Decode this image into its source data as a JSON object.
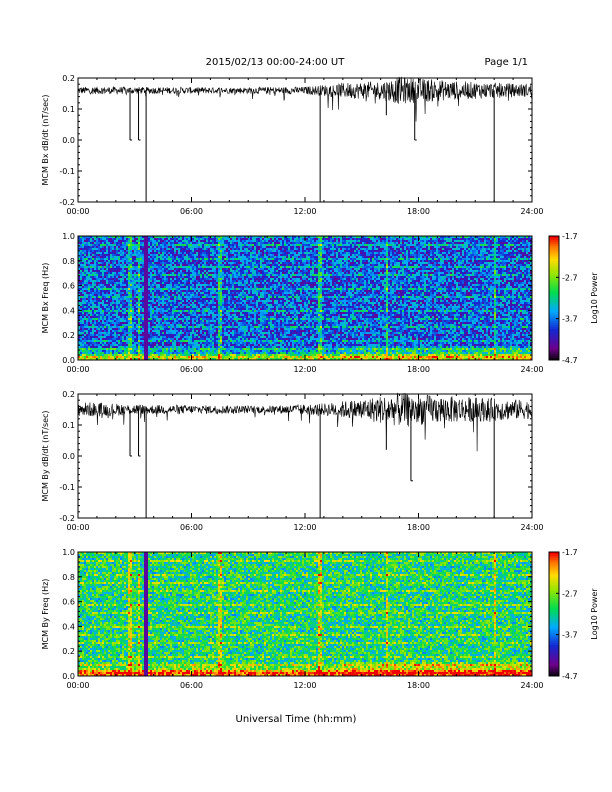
{
  "header": {
    "title": "2015/02/13  00:00-24:00 UT",
    "page": "Page 1/1"
  },
  "x_axis_title": "Universal Time (hh:mm)",
  "chart_data": [
    {
      "type": "line",
      "id": "bx_line",
      "ylabel": "MCM Bx dB/dt (nT/sec)",
      "ylim": [
        -0.2,
        0.2
      ],
      "xlim_hours": [
        0,
        24
      ],
      "yticks": [
        "0.2",
        "0.1",
        "0.0",
        "-0.1",
        "-0.2"
      ],
      "ytick_values": [
        0.2,
        0.1,
        0.0,
        -0.1,
        -0.2
      ],
      "xticks": [
        "00:00",
        "06:00",
        "12:00",
        "18:00",
        "24:00"
      ],
      "baseline": 0.16,
      "noise_envelope": [
        {
          "x": 0,
          "amp": 0.012
        },
        {
          "x": 8,
          "amp": 0.01
        },
        {
          "x": 12,
          "amp": 0.012
        },
        {
          "x": 14,
          "amp": 0.025
        },
        {
          "x": 16,
          "amp": 0.03
        },
        {
          "x": 17,
          "amp": 0.045
        },
        {
          "x": 18,
          "amp": 0.04
        },
        {
          "x": 20,
          "amp": 0.03
        },
        {
          "x": 22,
          "amp": 0.025
        },
        {
          "x": 24,
          "amp": 0.02
        }
      ],
      "spikes": [
        {
          "x": 2.75,
          "y": 0.0
        },
        {
          "x": 3.2,
          "y": 0.0
        },
        {
          "x": 3.6,
          "y": -0.2
        },
        {
          "x": 12.8,
          "y": -0.2
        },
        {
          "x": 16.3,
          "y": 0.08
        },
        {
          "x": 17.8,
          "y": 0.0
        },
        {
          "x": 22.0,
          "y": -0.2
        }
      ]
    },
    {
      "type": "heatmap",
      "id": "bx_spec",
      "ylabel": "MCM Bx Freq (Hz)",
      "ylim": [
        0.0,
        1.0
      ],
      "xlim_hours": [
        0,
        24
      ],
      "yticks": [
        "1.0",
        "0.8",
        "0.6",
        "0.4",
        "0.2",
        "0.0"
      ],
      "ytick_values": [
        1.0,
        0.8,
        0.6,
        0.4,
        0.2,
        0.0
      ],
      "xticks": [
        "00:00",
        "06:00",
        "12:00",
        "18:00",
        "24:00"
      ],
      "base_level": -3.8,
      "colorbar": {
        "label": "Log10 Power",
        "min": -4.7,
        "max": -1.7,
        "ticks": [
          "-1.7",
          "-2.7",
          "-3.7",
          "-4.7"
        ],
        "tick_values": [
          -1.7,
          -2.7,
          -3.7,
          -4.7
        ]
      }
    },
    {
      "type": "line",
      "id": "by_line",
      "ylabel": "MCM By dB/dt (nT/sec)",
      "ylim": [
        -0.2,
        0.2
      ],
      "xlim_hours": [
        0,
        24
      ],
      "yticks": [
        "0.2",
        "0.1",
        "0.0",
        "-0.1",
        "-0.2"
      ],
      "ytick_values": [
        0.2,
        0.1,
        0.0,
        -0.1,
        -0.2
      ],
      "xticks": [
        "00:00",
        "06:00",
        "12:00",
        "18:00",
        "24:00"
      ],
      "baseline": 0.15,
      "noise_envelope": [
        {
          "x": 0,
          "amp": 0.025
        },
        {
          "x": 4,
          "amp": 0.015
        },
        {
          "x": 10,
          "amp": 0.012
        },
        {
          "x": 13,
          "amp": 0.02
        },
        {
          "x": 15,
          "amp": 0.035
        },
        {
          "x": 17,
          "amp": 0.055
        },
        {
          "x": 19,
          "amp": 0.045
        },
        {
          "x": 21,
          "amp": 0.04
        },
        {
          "x": 24,
          "amp": 0.03
        }
      ],
      "spikes": [
        {
          "x": 2.75,
          "y": 0.0
        },
        {
          "x": 3.2,
          "y": 0.0
        },
        {
          "x": 3.6,
          "y": -0.2
        },
        {
          "x": 12.8,
          "y": -0.2
        },
        {
          "x": 16.3,
          "y": 0.02
        },
        {
          "x": 17.6,
          "y": -0.08
        },
        {
          "x": 22.0,
          "y": -0.2
        }
      ]
    },
    {
      "type": "heatmap",
      "id": "by_spec",
      "ylabel": "MCM By Freq (Hz)",
      "ylim": [
        0.0,
        1.0
      ],
      "xlim_hours": [
        0,
        24
      ],
      "yticks": [
        "1.0",
        "0.8",
        "0.6",
        "0.4",
        "0.2",
        "0.0"
      ],
      "ytick_values": [
        1.0,
        0.8,
        0.6,
        0.4,
        0.2,
        0.0
      ],
      "xticks": [
        "00:00",
        "06:00",
        "12:00",
        "18:00",
        "24:00"
      ],
      "base_level": -3.1,
      "colorbar": {
        "label": "Log10 Power",
        "min": -4.7,
        "max": -1.7,
        "ticks": [
          "-1.7",
          "-2.7",
          "-3.7",
          "-4.7"
        ],
        "tick_values": [
          -1.7,
          -2.7,
          -3.7,
          -4.7
        ]
      }
    }
  ],
  "colors": {
    "trace": "#000000",
    "frame": "#000000",
    "background": "#ffffff"
  }
}
